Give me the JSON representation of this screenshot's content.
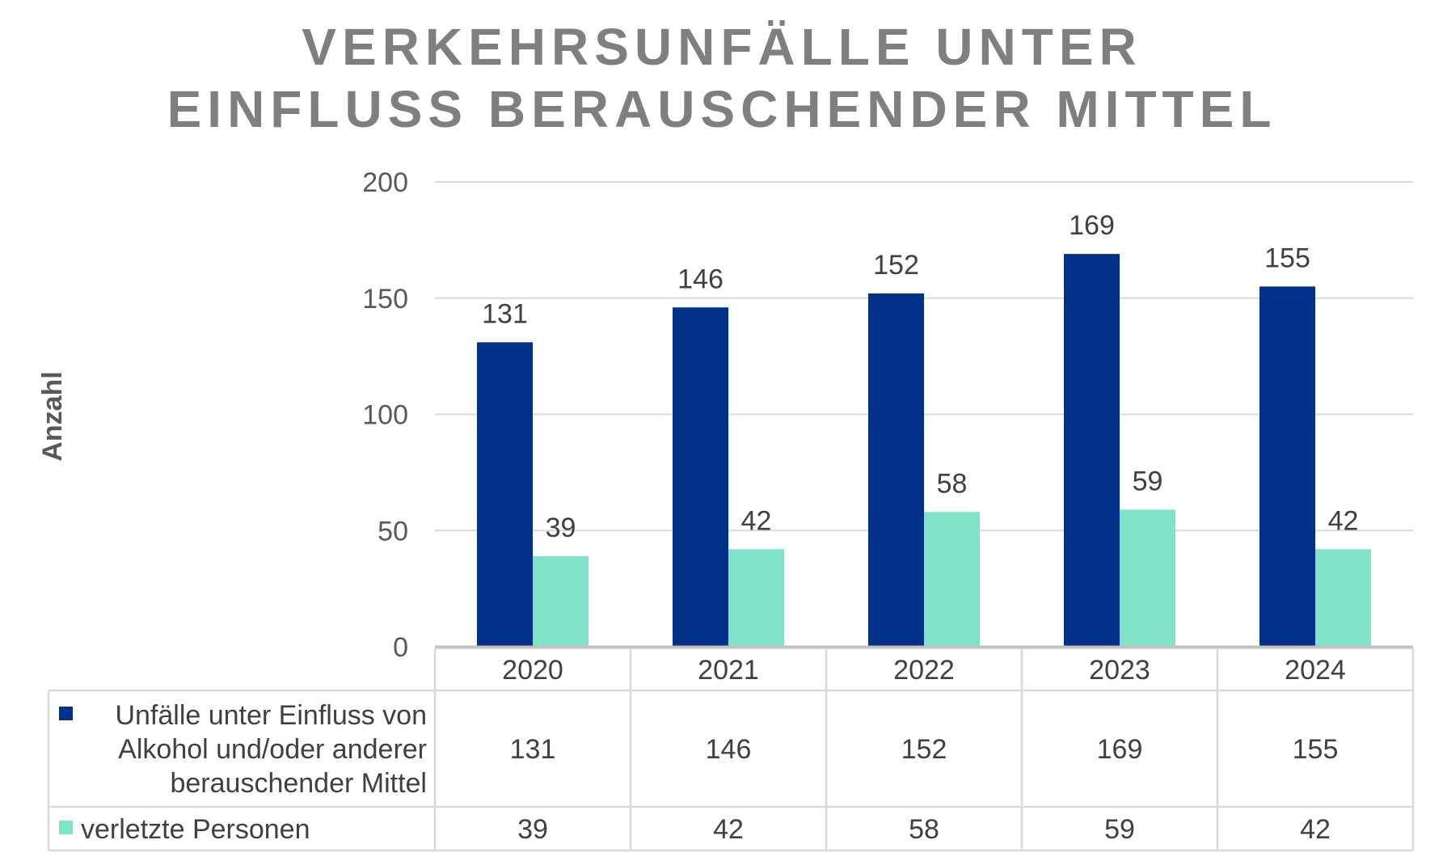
{
  "chart_data": {
    "type": "bar",
    "title": [
      "VERKEHRSUNFÄLLE UNTER",
      "EINFLUSS BERAUSCHENDER MITTEL"
    ],
    "xlabel": "",
    "ylabel": "Anzahl",
    "ylim": [
      0,
      200
    ],
    "yticks": [
      0,
      50,
      100,
      150,
      200
    ],
    "grid": true,
    "categories": [
      "2020",
      "2021",
      "2022",
      "2023",
      "2024"
    ],
    "series": [
      {
        "name": "Unfälle unter Einfluss von Alkohol und/oder anderer berauschender Mittel",
        "name_lines": [
          "Unfälle unter Einfluss von",
          "Alkohol und/oder anderer",
          "berauschender Mittel"
        ],
        "color": "#003087",
        "values": [
          131,
          146,
          152,
          169,
          155
        ]
      },
      {
        "name": "verletzte Personen",
        "name_lines": [
          "verletzte Personen"
        ],
        "color": "#80e3c8",
        "values": [
          39,
          42,
          58,
          59,
          42
        ]
      }
    ],
    "legend": "data-table-below"
  }
}
